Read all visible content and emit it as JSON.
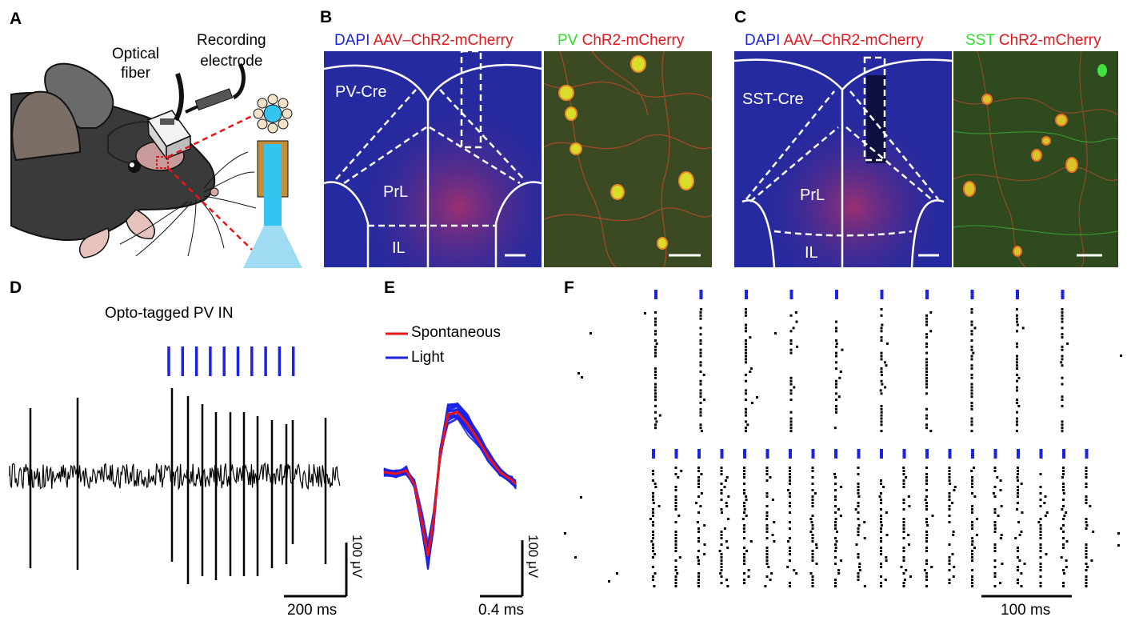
{
  "panels": {
    "A": "A",
    "B": "B",
    "C": "C",
    "D": "D",
    "E": "E",
    "F": "F"
  },
  "panelA": {
    "optical_fiber_line1": "Optical",
    "optical_fiber_line2": "fiber",
    "recording_line1": "Recording",
    "recording_line2": "electrode"
  },
  "panelB": {
    "header_dapi": "DAPI",
    "header_virus": "AAV–ChR2-mCherry",
    "header_cell": "PV",
    "header_chr2": "ChR2-mCherry",
    "region_cre": "PV-Cre",
    "region_prl": "PrL",
    "region_il": "IL"
  },
  "panelC": {
    "header_dapi": "DAPI",
    "header_virus": "AAV–ChR2-mCherry",
    "header_cell": "SST",
    "header_chr2": "ChR2-mCherry",
    "region_cre": "SST-Cre",
    "region_prl": "PrL",
    "region_il": "IL"
  },
  "panelD": {
    "title": "Opto-tagged PV IN",
    "scale_y": "100 μV",
    "scale_x": "200 ms",
    "light_pulses": 10
  },
  "panelE": {
    "legend_spont": "Spontaneous",
    "legend_light": "Light",
    "scale_y": "100 μV",
    "scale_x": "0.4 ms"
  },
  "panelF": {
    "scale_x": "100 ms",
    "top_pulses": 10,
    "bottom_pulses": 20
  },
  "colors": {
    "light_blue": "#1a22e8",
    "spont_red": "#e8141a",
    "dapi_blue": "#1a22e8",
    "mcherry_red": "#e8141a",
    "cell_green": "#2fe02a"
  }
}
